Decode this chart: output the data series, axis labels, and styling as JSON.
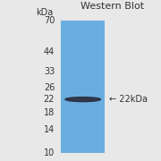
{
  "title": "Western Blot",
  "title_fontsize": 8,
  "gel_bg_color": "#6aaee0",
  "band_color": "#2a2a3a",
  "y_labels": [
    70,
    44,
    33,
    26,
    22,
    18,
    14,
    10
  ],
  "annotation_text": "← 22kDa",
  "annotation_fontsize": 7,
  "tick_fontsize": 7,
  "fig_bg": "#e8e8e8",
  "label_color": "#333333",
  "band_kda": 22
}
